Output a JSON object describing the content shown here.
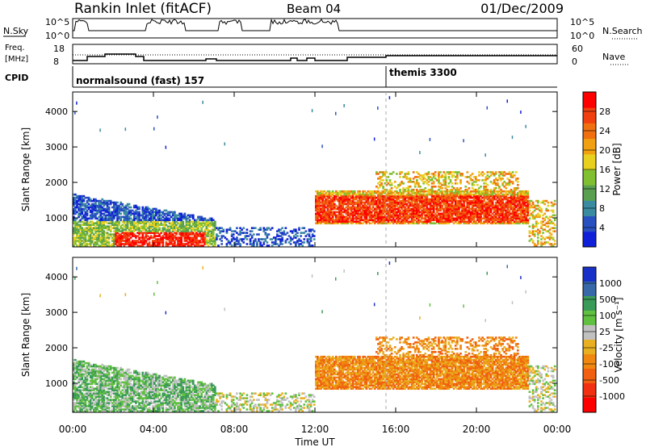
{
  "header": {
    "station": "Rankin Inlet (fitACF)",
    "beam": "Beam 04",
    "date": "01/Dec/2009"
  },
  "strip_panels": {
    "nsky_label": "N.Sky",
    "nsearch_label": "N.Search",
    "count_ticks_left": [
      "10^5",
      "10^0"
    ],
    "count_ticks_right": [
      "10^5",
      "10^0"
    ],
    "freq_label_line1": "Freq.",
    "freq_label_line2": "[MHz]",
    "freq_ticks": [
      "18",
      "8"
    ],
    "nave_label": "Nave",
    "nave_ticks": [
      "60",
      "0"
    ],
    "cpid_label": "CPID",
    "cpid_segments": [
      {
        "label": "normalsound (fast) 157",
        "start_hour": 0
      },
      {
        "label": "themis 3300",
        "start_hour": 15.5
      }
    ]
  },
  "chart_data": [
    {
      "type": "heatmap",
      "title": "",
      "xlabel": "",
      "ylabel": "Slant Range [km]",
      "x_range_hours": [
        0,
        24
      ],
      "ylim": [
        180,
        4550
      ],
      "y_ticks": [
        "1000",
        "2000",
        "3000",
        "4000"
      ],
      "colorbar": {
        "label": "Power [dB]",
        "ticks": [
          "4",
          "8",
          "12",
          "16",
          "20",
          "24",
          "28"
        ],
        "colors": [
          "#1020d8",
          "#2850c0",
          "#3a8aa0",
          "#5aa050",
          "#80c030",
          "#e8d020",
          "#f0a010",
          "#f07010",
          "#f04010",
          "#ff0000"
        ]
      }
    },
    {
      "type": "heatmap",
      "title": "",
      "xlabel": "Time UT",
      "ylabel": "Slant Range [km]",
      "x_range_hours": [
        0,
        24
      ],
      "ylim": [
        180,
        4550
      ],
      "y_ticks": [
        "1000",
        "2000",
        "3000",
        "4000"
      ],
      "x_ticks": [
        "00:00",
        "04:00",
        "08:00",
        "12:00",
        "16:00",
        "20:00",
        "00:00"
      ],
      "colorbar": {
        "label": "Velocity [m s⁻¹]",
        "ticks": [
          "1000",
          "500",
          "100",
          "25",
          "-25",
          "-100",
          "-500",
          "-1000"
        ],
        "colors": [
          "#1830c8",
          "#3868a8",
          "#3a9a58",
          "#60c040",
          "#c0c0c0",
          "#e8b020",
          "#f08810",
          "#f06010",
          "#f03010",
          "#ff0000"
        ]
      }
    }
  ]
}
